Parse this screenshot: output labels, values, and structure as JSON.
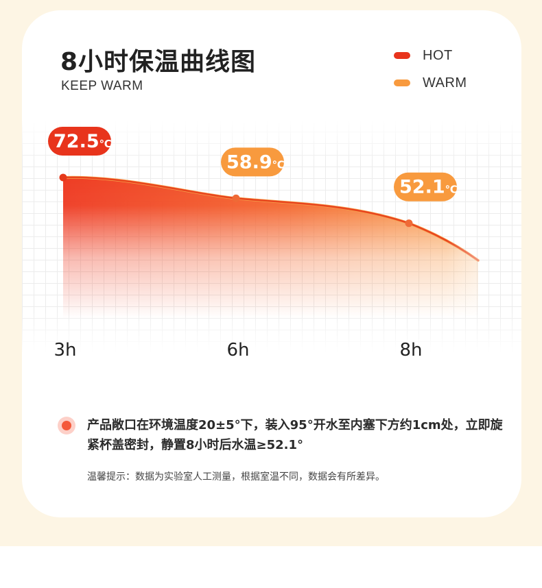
{
  "title": "8小时保温曲线图",
  "subtitle": "KEEP WARM",
  "legend": [
    {
      "label": "HOT",
      "color": "#e8341c"
    },
    {
      "label": "WARM",
      "color": "#f89a3e"
    }
  ],
  "chart_data": {
    "type": "area",
    "categories": [
      "3h",
      "6h",
      "8h"
    ],
    "series": [
      {
        "values": [
          72.5,
          58.9,
          52.1
        ]
      }
    ],
    "data_labels": [
      "72.5",
      "58.9",
      "52.1"
    ],
    "unit": "℃",
    "label_colors": [
      "#e8341c",
      "#f89a3e",
      "#f89a3e"
    ],
    "grid": true
  },
  "note": {
    "text": "产品敞口在环境温度20±5°下，装入95°开水至内塞下方约1cm处，立即旋紧杯盖密封，静置8小时后水温≥52.1°",
    "tip": "温馨提示：数据为实验室人工测量，根据室温不同，数据会有所差异。"
  }
}
